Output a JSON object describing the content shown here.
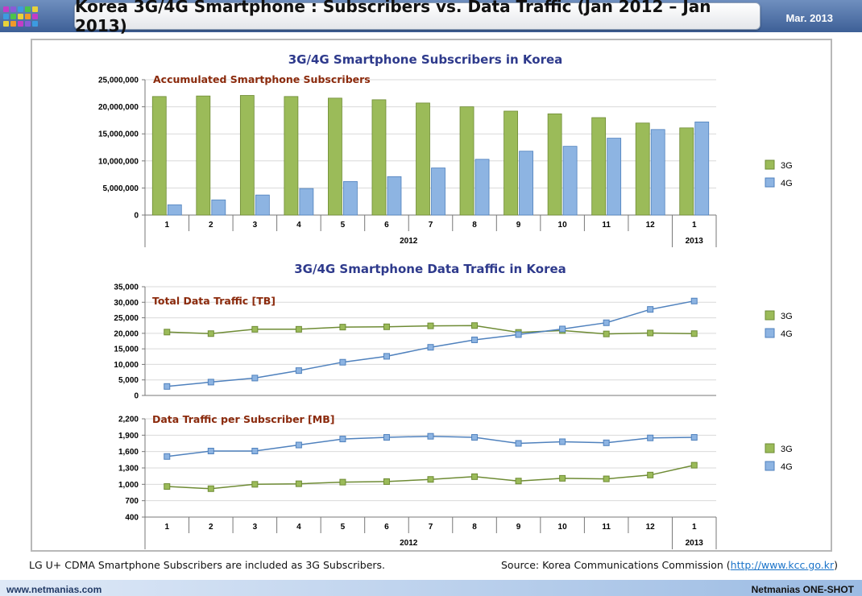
{
  "header": {
    "title": "Korea 3G/4G Smartphone : Subscribers vs. Data Traffic (Jan 2012 – Jan 2013)",
    "date": "Mar. 2013"
  },
  "colors": {
    "g3_fill": "#9bbb59",
    "g3_stroke": "#6e8b34",
    "g4_fill": "#8db4e2",
    "g4_stroke": "#4f81bd",
    "section_title": "#2e3a8c",
    "chart_label": "#8b2a0c"
  },
  "chart_data": [
    {
      "type": "bar",
      "title": "3G/4G Smartphone Subscribers in Korea",
      "subtitle": "Accumulated Smartphone Subscribers",
      "categories": [
        "1",
        "2",
        "3",
        "4",
        "5",
        "6",
        "7",
        "8",
        "9",
        "10",
        "11",
        "12",
        "1"
      ],
      "category_groups": [
        {
          "label": "2012",
          "span": 12
        },
        {
          "label": "2013",
          "span": 1
        }
      ],
      "series": [
        {
          "name": "3G",
          "values": [
            21900000,
            22000000,
            22100000,
            21900000,
            21600000,
            21300000,
            20700000,
            20000000,
            19200000,
            18700000,
            18000000,
            17000000,
            16100000
          ]
        },
        {
          "name": "4G",
          "values": [
            1900000,
            2800000,
            3700000,
            4900000,
            6200000,
            7100000,
            8700000,
            10300000,
            11800000,
            12700000,
            14200000,
            15800000,
            17200000
          ]
        }
      ],
      "ylim": [
        0,
        25000000
      ],
      "yticks": [
        "0",
        "5,000,000",
        "10,000,000",
        "15,000,000",
        "20,000,000",
        "25,000,000"
      ],
      "grid": true,
      "legend": "right"
    },
    {
      "type": "line",
      "title": "3G/4G Smartphone Data Traffic in Korea",
      "subtitle": "Total Data Traffic [TB]",
      "categories": [
        "1",
        "2",
        "3",
        "4",
        "5",
        "6",
        "7",
        "8",
        "9",
        "10",
        "11",
        "12",
        "1"
      ],
      "series": [
        {
          "name": "3G",
          "values": [
            20400,
            19900,
            21300,
            21300,
            22000,
            22100,
            22400,
            22500,
            20300,
            20900,
            19800,
            20100,
            19900
          ]
        },
        {
          "name": "4G",
          "values": [
            2900,
            4300,
            5600,
            8000,
            10700,
            12600,
            15500,
            17900,
            19600,
            21400,
            23400,
            27700,
            30400
          ]
        }
      ],
      "ylim": [
        0,
        35000
      ],
      "yticks": [
        "0",
        "5,000",
        "10,000",
        "15,000",
        "20,000",
        "25,000",
        "30,000",
        "35,000"
      ],
      "grid": true,
      "legend": "right"
    },
    {
      "type": "line",
      "subtitle": "Data Traffic per Subscriber [MB]",
      "categories": [
        "1",
        "2",
        "3",
        "4",
        "5",
        "6",
        "7",
        "8",
        "9",
        "10",
        "11",
        "12",
        "1"
      ],
      "category_groups": [
        {
          "label": "2012",
          "span": 12
        },
        {
          "label": "2013",
          "span": 1
        }
      ],
      "series": [
        {
          "name": "3G",
          "values": [
            960,
            920,
            1000,
            1010,
            1040,
            1050,
            1090,
            1140,
            1060,
            1110,
            1100,
            1170,
            1350
          ]
        },
        {
          "name": "4G",
          "values": [
            1510,
            1610,
            1610,
            1720,
            1830,
            1860,
            1880,
            1860,
            1750,
            1780,
            1760,
            1850,
            1860
          ]
        }
      ],
      "ylim": [
        400,
        2200
      ],
      "yticks": [
        "400",
        "700",
        "1,000",
        "1,300",
        "1,600",
        "1,900",
        "2,200"
      ],
      "grid": true,
      "legend": "right"
    }
  ],
  "footnote": "LG U+ CDMA Smartphone Subscribers are included as 3G Subscribers.",
  "source": {
    "prefix": "Source: Korea Communications Commission (",
    "link": "http://www.kcc.go.kr",
    "suffix": ")"
  },
  "footer": {
    "url": "www.netmanias.com",
    "brand": "Netmanias ONE-SHOT"
  }
}
